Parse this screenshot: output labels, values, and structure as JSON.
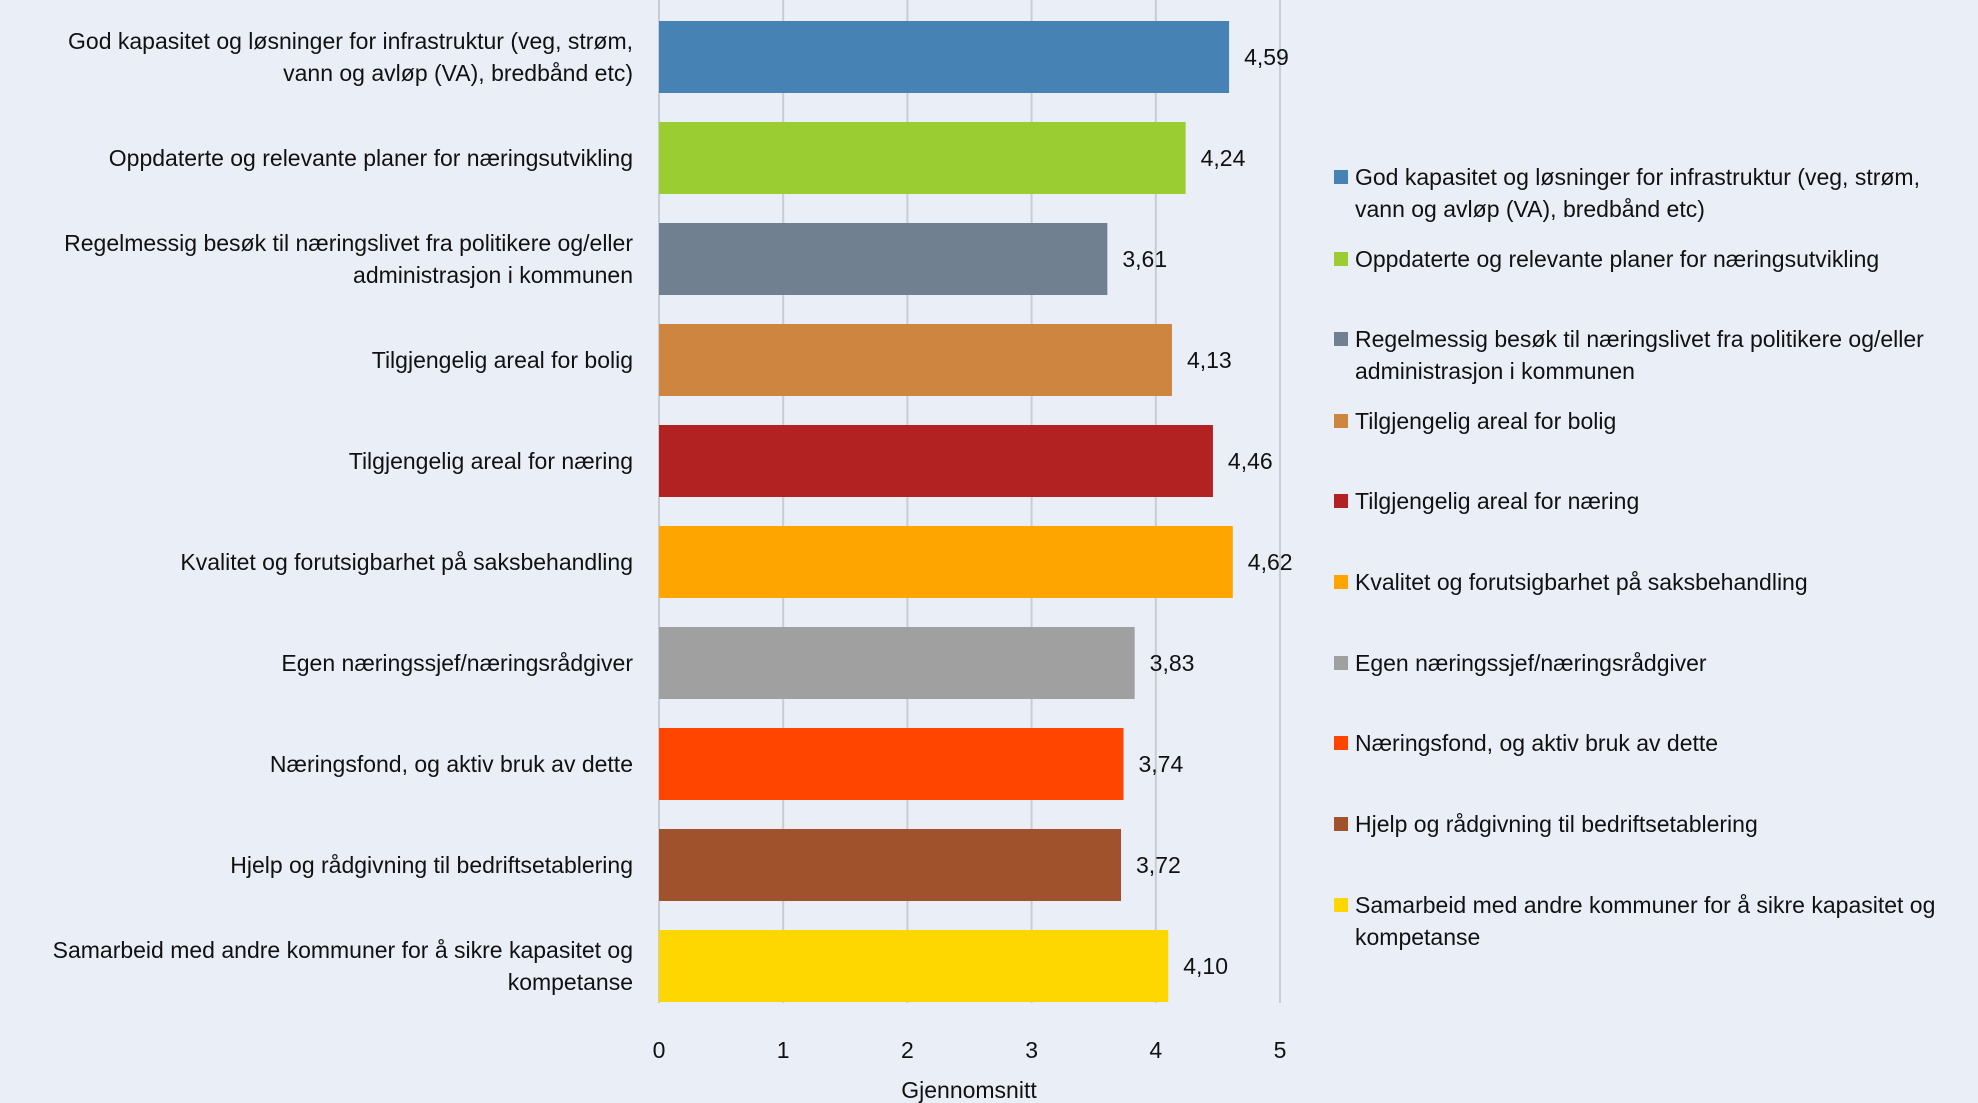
{
  "chart_data": {
    "type": "bar",
    "orientation": "horizontal",
    "categories": [
      "God kapasitet og løsninger for infrastruktur (veg, strøm, vann og avløp (VA), bredbånd etc)",
      "Oppdaterte og relevante planer for næringsutvikling",
      "Regelmessig besøk til næringslivet fra politikere og/eller administrasjon i kommunen",
      "Tilgjengelig areal for bolig",
      "Tilgjengelig areal for næring",
      "Kvalitet og forutsigbarhet på saksbehandling",
      "Egen næringssjef/næringsrådgiver",
      "Næringsfond, og aktiv bruk av dette",
      "Hjelp og rådgivning til bedriftsetablering",
      "Samarbeid med andre kommuner for å sikre kapasitet og kompetanse"
    ],
    "category_lines": [
      [
        "God kapasitet og løsninger for infrastruktur (veg, strøm,",
        "vann og avløp (VA), bredbånd etc)"
      ],
      [
        "Oppdaterte og relevante planer for næringsutvikling"
      ],
      [
        "Regelmessig besøk til næringslivet fra politikere og/eller",
        "administrasjon i kommunen"
      ],
      [
        "Tilgjengelig areal for bolig"
      ],
      [
        "Tilgjengelig areal for næring"
      ],
      [
        "Kvalitet og forutsigbarhet på saksbehandling"
      ],
      [
        "Egen næringssjef/næringsrådgiver"
      ],
      [
        "Næringsfond, og aktiv bruk av dette"
      ],
      [
        "Hjelp og rådgivning til bedriftsetablering"
      ],
      [
        "Samarbeid med andre kommuner for å sikre kapasitet og",
        "kompetanse"
      ]
    ],
    "values": [
      4.59,
      4.24,
      3.61,
      4.13,
      4.46,
      4.62,
      3.83,
      3.74,
      3.72,
      4.1
    ],
    "value_labels": [
      "4,59",
      "4,24",
      "3,61",
      "4,13",
      "4,46",
      "4,62",
      "3,83",
      "3,74",
      "3,72",
      "4,10"
    ],
    "colors": [
      "#4682b4",
      "#9acd32",
      "#708090",
      "#cd853f",
      "#b22222",
      "#ffa500",
      "#a0a0a0",
      "#ff4500",
      "#a0522d",
      "#ffd700"
    ],
    "xlim": [
      0,
      5
    ],
    "xticks": [
      "0",
      "1",
      "2",
      "3",
      "4",
      "5"
    ],
    "xlabel": "Gjennomsnitt",
    "grid": true,
    "legend": {
      "placement": "right",
      "entries": [
        [
          "God kapasitet og løsninger for infrastruktur (veg, strøm,",
          "vann og avløp (VA), bredbånd etc)"
        ],
        [
          "Oppdaterte og relevante planer for næringsutvikling"
        ],
        [
          "Regelmessig besøk til næringslivet fra politikere og/eller",
          "administrasjon i kommunen"
        ],
        [
          "Tilgjengelig areal for bolig"
        ],
        [
          "Tilgjengelig areal for næring"
        ],
        [
          "Kvalitet og forutsigbarhet på saksbehandling"
        ],
        [
          "Egen næringssjef/næringsrådgiver"
        ],
        [
          "Næringsfond, og aktiv bruk av dette"
        ],
        [
          "Hjelp og rådgivning til bedriftsetablering"
        ],
        [
          "Samarbeid med andre kommuner for å sikre kapasitet og",
          "kompetanse"
        ]
      ]
    },
    "background": "#eaeef7",
    "grid_color": "#c8ccd4"
  }
}
